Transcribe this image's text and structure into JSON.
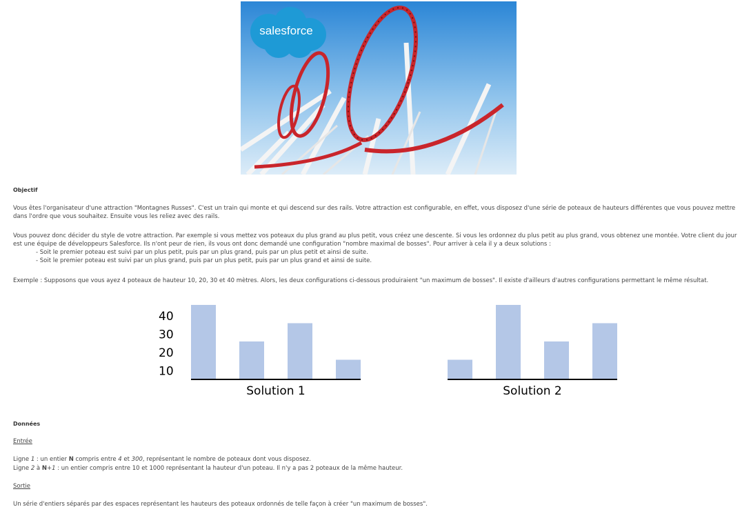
{
  "hero": {
    "logo_text": "salesforce",
    "logo_color": "#1e9ad6"
  },
  "objectif": {
    "title": "Objectif",
    "p1": "Vous êtes l'organisateur d'une attraction \"Montagnes Russes\". C'est un train qui monte et qui descend sur des rails. Votre attraction est configurable, en effet, vous disposez d'une série de poteaux de hauteurs différentes que vous pouvez mettre dans l'ordre que vous souhaitez. Ensuite vous les reliez avec des rails.",
    "p2": "Vous pouvez donc décider du style de votre attraction. Par exemple si vous mettez vos poteaux du plus grand au plus petit, vous créez une descente. Si vous les ordonnez du plus petit au plus grand, vous obtenez une montée. Votre client du jour est une équipe de développeurs Salesforce. Ils n'ont peur de rien, ils vous ont donc demandé une configuration \"nombre maximal de bosses\". Pour arriver à cela il y a deux solutions :",
    "bullet1": "- Soit le premier poteau est suivi par un plus petit, puis par un plus grand, puis par un plus petit et ainsi de suite.",
    "bullet2": "- Soit le premier poteau est suivi par un plus grand, puis par un plus petit, puis par un plus grand et ainsi de suite.",
    "example": "Exemple : Supposons que vous ayez 4 poteaux de hauteur 10, 20, 30 et 40 mètres. Alors, les deux configurations ci-dessous produiraient \"un maximum de bosses\". Il existe d'ailleurs d'autres configurations permettant le même résultat."
  },
  "chart_data": {
    "type": "bar",
    "y_tick_labels": [
      "40",
      "30",
      "20",
      "10"
    ],
    "ylim": [
      0,
      40
    ],
    "bar_color": "#b4c7e7",
    "groups": [
      {
        "label": "Solution 1",
        "values": [
          40,
          20,
          30,
          10
        ]
      },
      {
        "label": "Solution 2",
        "values": [
          10,
          40,
          20,
          30
        ]
      }
    ]
  },
  "donnees": {
    "title": "Données",
    "entree_heading": "Entrée",
    "line1_a": "Ligne ",
    "line1_num": "1",
    "line1_b": " : un entier ",
    "line1_N": "N",
    "line1_c": " compris entre ",
    "line1_min": "4",
    "line1_d": " et ",
    "line1_max": "300",
    "line1_e": ", représentant le nombre de poteaux dont vous disposez.",
    "line2_a": "Ligne ",
    "line2_num": "2",
    "line2_b": " à ",
    "line2_N": "N",
    "line2_plus": "+1",
    "line2_c": " : un entier compris entre 10 et 1000 représentant la hauteur d'un poteau. Il n'y a pas 2 poteaux de la même hauteur.",
    "sortie_heading": "Sortie",
    "sortie_text": "Un série d'entiers séparés par des espaces représentant les hauteurs des poteaux ordonnés de telle façon à créer \"un maximum de bosses\"."
  }
}
